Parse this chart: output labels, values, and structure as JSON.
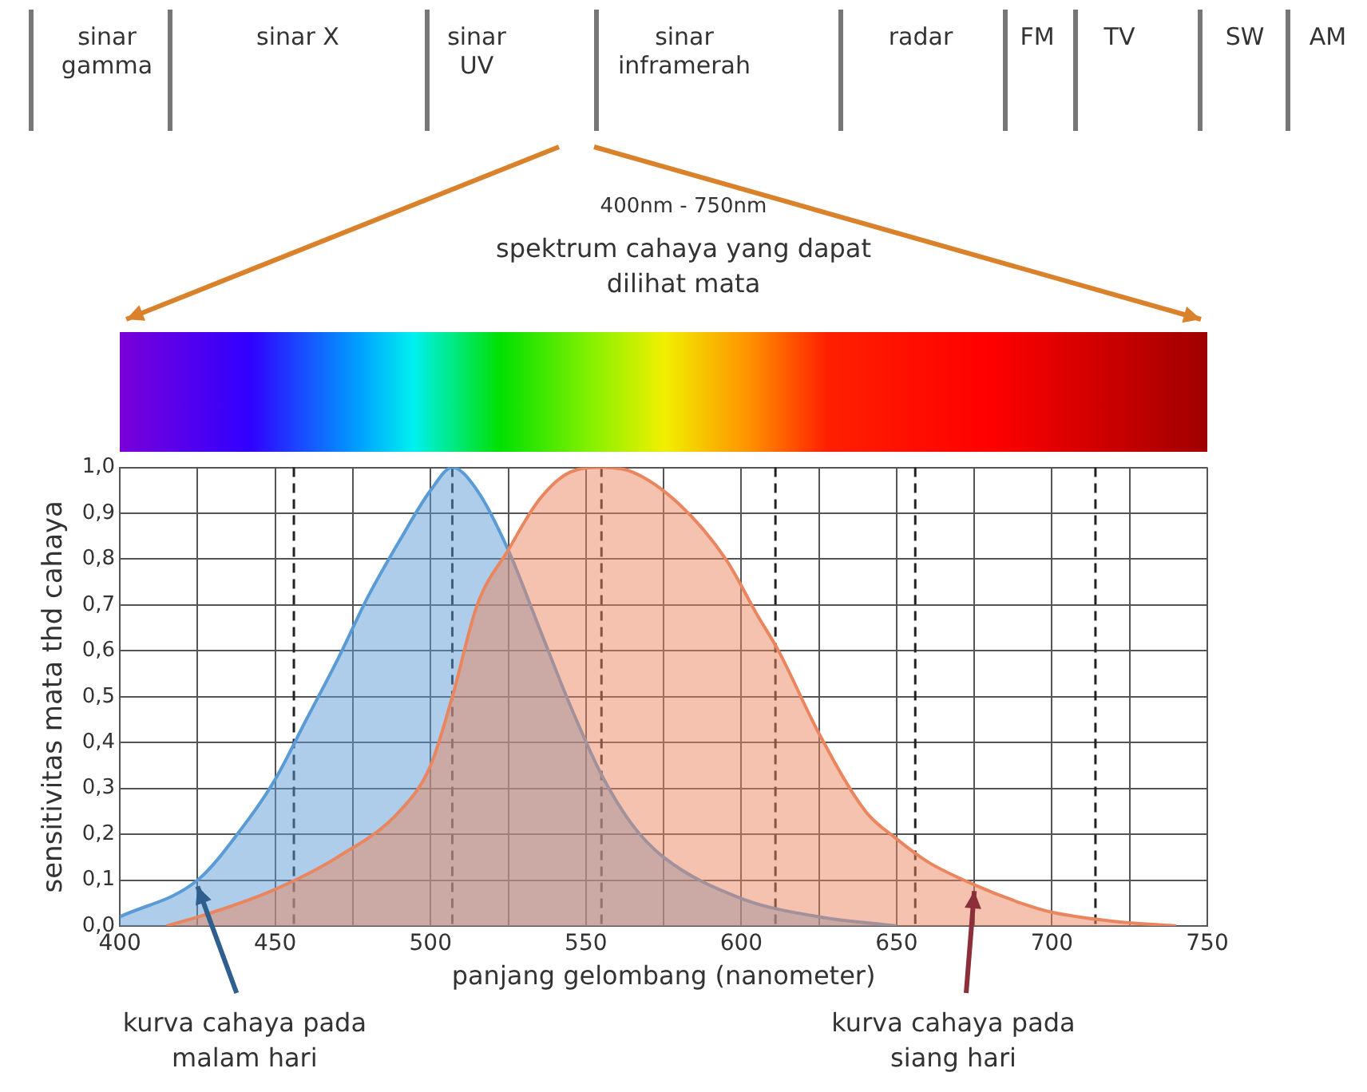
{
  "chart_data": {
    "type": "area",
    "title": "spektrum cahaya yang dapat dilihat mata",
    "subtitle": "400nm - 750nm",
    "xlabel": "panjang gelombang (nanometer)",
    "ylabel": "sensitivitas mata thd cahaya",
    "annotations": [
      "sinar gamma",
      "sinar X",
      "sinar UV",
      "sinar inframerah",
      "radar",
      "FM",
      "TV",
      "SW",
      "AM"
    ],
    "series": [
      {
        "name": "kurva cahaya pada siang hari",
        "color": "#e9865f",
        "x": [
          415,
          430,
          450,
          470,
          490,
          500,
          507,
          515,
          525,
          535,
          545,
          555,
          565,
          580,
          595,
          605,
          612,
          625,
          640,
          650,
          660,
          675,
          690,
          700,
          720,
          740
        ],
        "values": [
          0.0,
          0.03,
          0.08,
          0.15,
          0.25,
          0.35,
          0.5,
          0.7,
          0.82,
          0.93,
          0.99,
          1.0,
          0.99,
          0.92,
          0.8,
          0.68,
          0.6,
          0.42,
          0.25,
          0.19,
          0.14,
          0.09,
          0.05,
          0.03,
          0.01,
          0.0
        ]
      },
      {
        "name": "kurva cahaya pada malam hari",
        "color": "#5b9bd5",
        "x": [
          400,
          425,
          440,
          450,
          460,
          470,
          480,
          490,
          500,
          507,
          515,
          525,
          535,
          545,
          555,
          565,
          575,
          600,
          625,
          650
        ],
        "values": [
          0.02,
          0.1,
          0.22,
          0.32,
          0.45,
          0.58,
          0.72,
          0.84,
          0.95,
          1.0,
          0.95,
          0.82,
          0.65,
          0.48,
          0.33,
          0.22,
          0.15,
          0.06,
          0.02,
          0.0
        ]
      }
    ],
    "xlim": [
      400,
      750
    ],
    "xticks": [
      400,
      {
        "value": 425,
        "label": null
      },
      450,
      {
        "value": 475,
        "label": null
      },
      500,
      {
        "value": 525,
        "label": null
      },
      550,
      {
        "value": 575,
        "label": null
      },
      600,
      {
        "value": 625,
        "label": null
      },
      650,
      {
        "value": 675,
        "label": null
      },
      700,
      {
        "value": 725,
        "label": null
      },
      750
    ],
    "ylim": [
      0,
      1
    ],
    "yticks": [
      {
        "value": 0,
        "label": "0,0"
      },
      {
        "value": 0.1,
        "label": "0,1"
      },
      {
        "value": 0.2,
        "label": "0,2"
      },
      {
        "value": 0.3,
        "label": "0,3"
      },
      {
        "value": 0.4,
        "label": "0,4"
      },
      {
        "value": 0.5,
        "label": "0,5"
      },
      {
        "value": 0.6,
        "label": "0,6"
      },
      {
        "value": 0.7,
        "label": "0,7"
      },
      {
        "value": 0.8,
        "label": "0,8"
      },
      {
        "value": 0.9,
        "label": "0,9"
      },
      {
        "value": 1,
        "label": "1,0"
      }
    ],
    "ref_lines": [
      {
        "axis": "x",
        "value": 456,
        "color": "#222222",
        "line_style": "dashed"
      },
      {
        "axis": "x",
        "value": 507,
        "color": "#222222",
        "line_style": "dashed"
      },
      {
        "axis": "x",
        "value": 555,
        "color": "#222222",
        "line_style": "dashed"
      },
      {
        "axis": "x",
        "value": 611,
        "color": "#222222",
        "line_style": "dashed"
      },
      {
        "axis": "x",
        "value": 656,
        "color": "#222222",
        "line_style": "dashed"
      },
      {
        "axis": "x",
        "value": 714,
        "color": "#222222",
        "line_style": "dashed"
      }
    ],
    "grid": true,
    "legend": false,
    "marker": "none",
    "line_style": "solid"
  }
}
